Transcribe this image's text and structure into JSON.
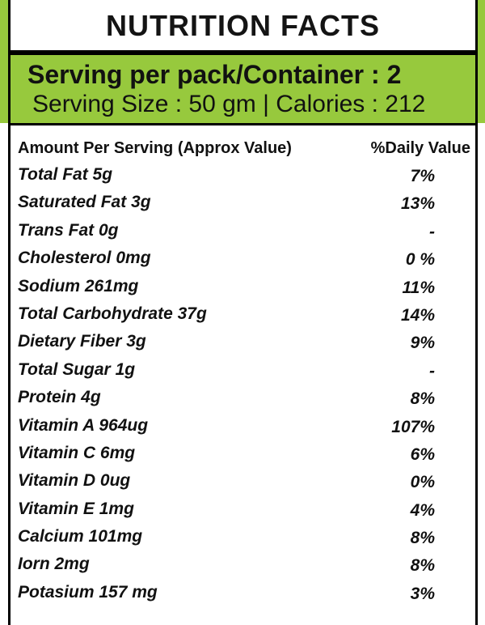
{
  "title": "NUTRITION FACTS",
  "serving": {
    "per_pack": "Serving per pack/Container : 2",
    "size_calories": "Serving Size : 50 gm | Calories : 212"
  },
  "table": {
    "header_left": "Amount Per Serving (Approx Value)",
    "header_right": "%Daily Value",
    "rows": [
      {
        "nutrient": "Total Fat 5g",
        "dv": "7%"
      },
      {
        "nutrient": "Saturated Fat 3g",
        "dv": "13%"
      },
      {
        "nutrient": "Trans Fat 0g",
        "dv": "-"
      },
      {
        "nutrient": "Cholesterol 0mg",
        "dv": "0 %"
      },
      {
        "nutrient": "Sodium 261mg",
        "dv": "11%"
      },
      {
        "nutrient": "Total Carbohydrate 37g",
        "dv": "14%"
      },
      {
        "nutrient": "Dietary Fiber 3g",
        "dv": "9%"
      },
      {
        "nutrient": "Total Sugar 1g",
        "dv": "-"
      },
      {
        "nutrient": "Protein 4g",
        "dv": "8%"
      },
      {
        "nutrient": "Vitamin A 964ug",
        "dv": "107%"
      },
      {
        "nutrient": "Vitamin C 6mg",
        "dv": "6%"
      },
      {
        "nutrient": "Vitamin D 0ug",
        "dv": "0%"
      },
      {
        "nutrient": "Vitamin E 1mg",
        "dv": "4%"
      },
      {
        "nutrient": "Calcium 101mg",
        "dv": "8%"
      },
      {
        "nutrient": "Iorn 2mg",
        "dv": "8%"
      },
      {
        "nutrient": "Potasium 157 mg",
        "dv": "3%"
      }
    ]
  },
  "colors": {
    "accent_green": "#97c93d",
    "text": "#111111",
    "rule": "#000000"
  }
}
